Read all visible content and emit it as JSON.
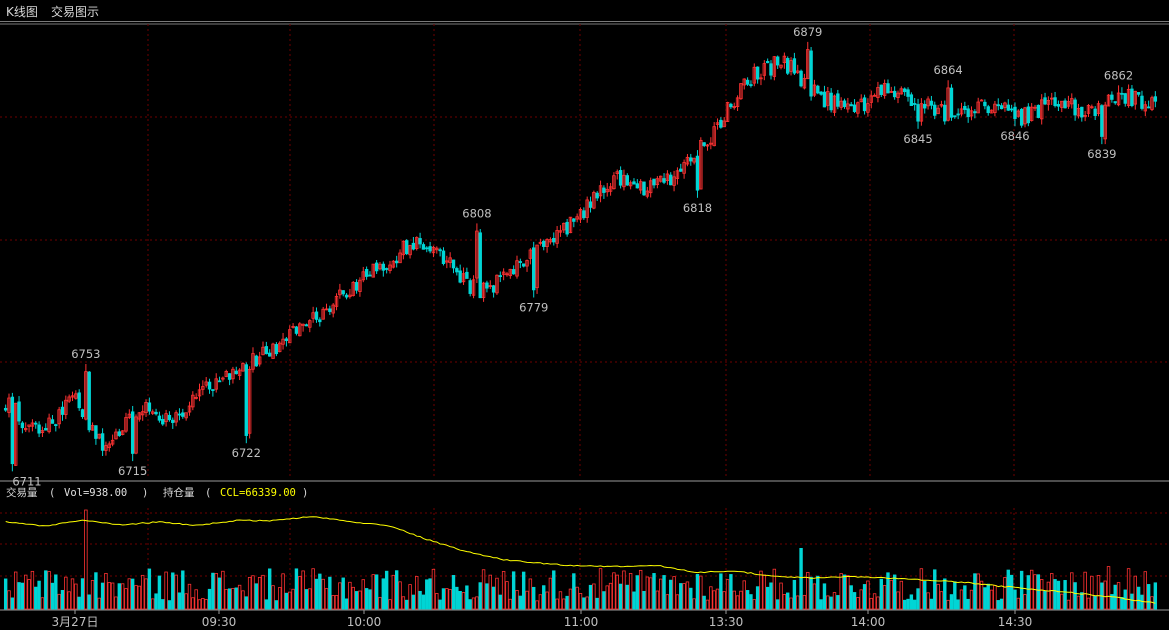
{
  "tabs": {
    "kline": "K线图",
    "trade": "交易图示"
  },
  "indicator": {
    "vol_name": "交易量",
    "vol_open": "(",
    "vol_value": "Vol=938.00",
    "vol_close": ")",
    "ccl_name": "持仓量",
    "ccl_open": "(",
    "ccl_value": "CCL=66339.00",
    "ccl_close": ")"
  },
  "colors": {
    "up": "#ff3232",
    "down": "#00d5d5",
    "ccl_line": "#ffff00",
    "grid": "#6e0000",
    "axis": "#9a9a9a"
  },
  "chart_data": {
    "type": "candlestick",
    "price_ylim": [
      6708,
      6886
    ],
    "x_labels": [
      "3月27日",
      "09:30",
      "10:00",
      "11:00",
      "13:30",
      "14:00",
      "14:30"
    ],
    "close_anchors": [
      6738,
      6725,
      6740,
      6718,
      6738,
      6730,
      6745,
      6752,
      6760,
      6770,
      6780,
      6790,
      6800,
      6795,
      6780,
      6790,
      6800,
      6812,
      6825,
      6822,
      6828,
      6845,
      6865,
      6872,
      6858,
      6852,
      6860,
      6855,
      6850,
      6855,
      6849,
      6856,
      6851,
      6859,
      6854
    ],
    "annotations": [
      {
        "label": "6711",
        "bar": 2,
        "pos": "below"
      },
      {
        "label": "6753",
        "bar": 24,
        "pos": "above"
      },
      {
        "label": "6715",
        "bar": 38,
        "pos": "below"
      },
      {
        "label": "6722",
        "bar": 72,
        "pos": "below"
      },
      {
        "label": "6808",
        "bar": 141,
        "pos": "above"
      },
      {
        "label": "6779",
        "bar": 158,
        "pos": "below"
      },
      {
        "label": "6818",
        "bar": 207,
        "pos": "below"
      },
      {
        "label": "6879",
        "bar": 240,
        "pos": "above"
      },
      {
        "label": "6845",
        "bar": 273,
        "pos": "below"
      },
      {
        "label": "6864",
        "bar": 282,
        "pos": "above"
      },
      {
        "label": "6846",
        "bar": 302,
        "pos": "below"
      },
      {
        "label": "6839",
        "bar": 328,
        "pos": "below"
      },
      {
        "label": "6862",
        "bar": 333,
        "pos": "above"
      }
    ],
    "volume_spikes": [
      {
        "bar": 24,
        "ratio": 0.98
      },
      {
        "bar": 238,
        "ratio": 0.6
      },
      {
        "bar": 330,
        "ratio": 0.42
      }
    ],
    "ccl_curve_pct": [
      0.2,
      0.26,
      0.17,
      0.24,
      0.2,
      0.25,
      0.18,
      0.18,
      0.12,
      0.2,
      0.25,
      0.45,
      0.62,
      0.74,
      0.79,
      0.83,
      0.83,
      0.82,
      0.92,
      0.9,
      0.97,
      1.0,
      0.98,
      1.0,
      1.03,
      1.06,
      1.12,
      1.17,
      1.22,
      1.28,
      1.36
    ],
    "ccl_ylim": [
      66200,
      66700
    ]
  }
}
